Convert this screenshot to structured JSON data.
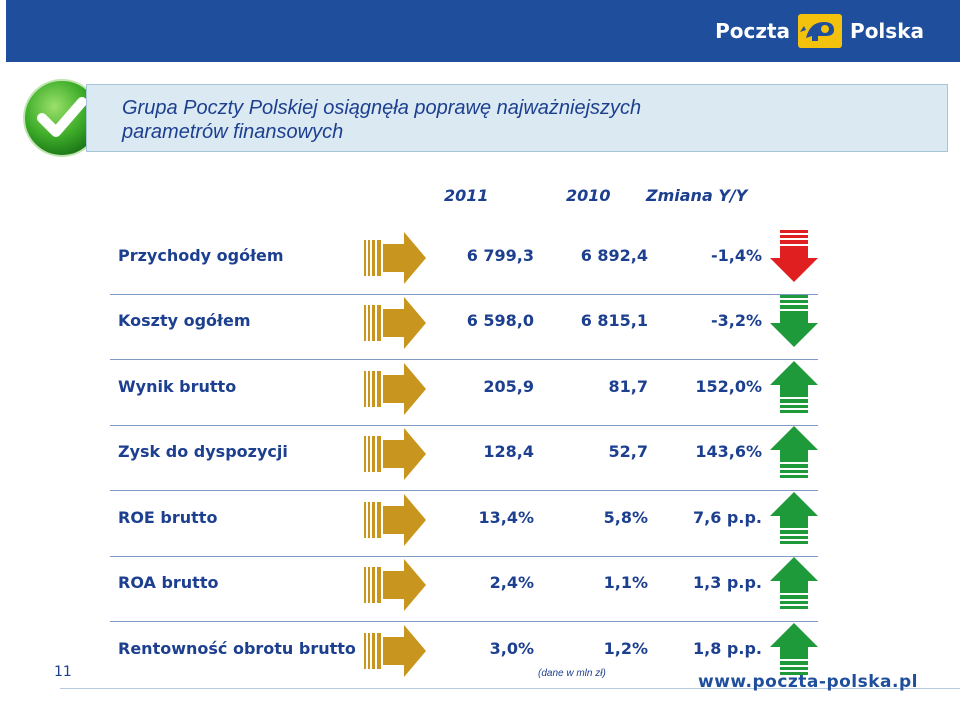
{
  "brand": {
    "left": "Poczta",
    "right": "Polska",
    "website": "www.poczta-polska.pl"
  },
  "title_line1": "Grupa Poczty Polskiej osiągnęła poprawę najważniejszych",
  "title_line2": "parametrów finansowych",
  "headers": {
    "y2011": "2011",
    "y2010": "2010",
    "change": "Zmiana Y/Y"
  },
  "rows": [
    {
      "label": "Przychody ogółem",
      "v2011": "6 799,3",
      "v2010": "6 892,4",
      "change": "-1,4%",
      "trend": "down",
      "trend_color": "#e02020"
    },
    {
      "label": "Koszty ogółem",
      "v2011": "6 598,0",
      "v2010": "6 815,1",
      "change": "-3,2%",
      "trend": "down",
      "trend_color": "#1f9a3a"
    },
    {
      "label": "Wynik brutto",
      "v2011": "205,9",
      "v2010": "81,7",
      "change": "152,0%",
      "trend": "up",
      "trend_color": "#1f9a3a"
    },
    {
      "label": "Zysk do dyspozycji",
      "v2011": "128,4",
      "v2010": "52,7",
      "change": "143,6%",
      "trend": "up",
      "trend_color": "#1f9a3a"
    },
    {
      "label": "ROE brutto",
      "v2011": "13,4%",
      "v2010": "5,8%",
      "change": "7,6 p.p.",
      "trend": "up",
      "trend_color": "#1f9a3a"
    },
    {
      "label": "ROA brutto",
      "v2011": "2,4%",
      "v2010": "1,1%",
      "change": "1,3 p.p.",
      "trend": "up",
      "trend_color": "#1f9a3a"
    },
    {
      "label": "Rentowność obrotu brutto",
      "v2011": "3,0%",
      "v2010": "1,2%",
      "change": "1,8 p.p.",
      "trend": "up",
      "trend_color": "#1f9a3a"
    }
  ],
  "note": "(dane w mln zł)",
  "page_number": "11",
  "colors": {
    "brand_blue": "#1f4f9c",
    "text_blue": "#1c3f8f",
    "gold": "#c8961e",
    "green": "#1f9a3a",
    "red": "#e02020"
  }
}
